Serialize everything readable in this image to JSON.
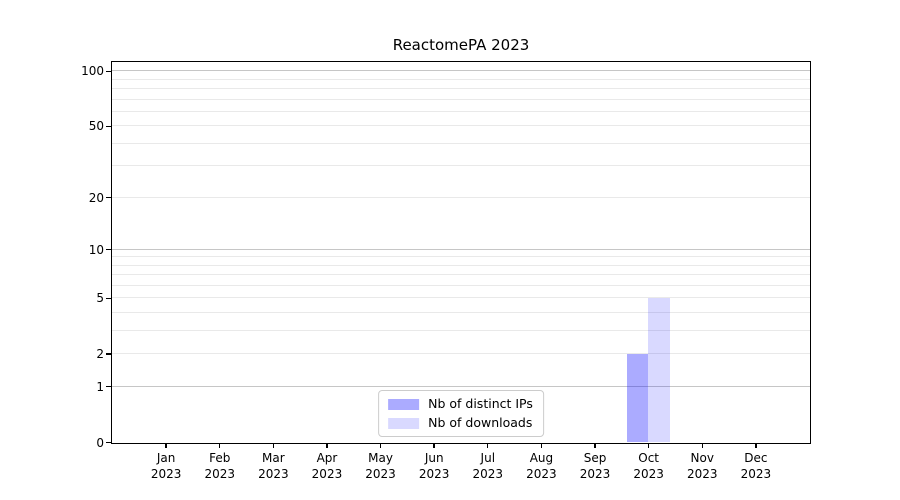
{
  "chart_data": {
    "type": "bar",
    "title": "ReactomePA 2023",
    "categories": [
      "Jan",
      "Feb",
      "Mar",
      "Apr",
      "May",
      "Jun",
      "Jul",
      "Aug",
      "Sep",
      "Oct",
      "Nov",
      "Dec"
    ],
    "year_label": "2023",
    "series": [
      {
        "name": "Nb of distinct IPs",
        "color": "rgba(0,0,255,0.33)",
        "color_hex_on_white": "#aaaaf7",
        "values": [
          0,
          0,
          0,
          0,
          0,
          0,
          0,
          0,
          0,
          2,
          0,
          0
        ]
      },
      {
        "name": "Nb of downloads",
        "color": "rgba(0,0,255,0.15)",
        "color_hex_on_white": "#dadaf9",
        "values": [
          0,
          0,
          0,
          0,
          0,
          0,
          0,
          0,
          0,
          5,
          0,
          0
        ]
      }
    ],
    "y_ticks": [
      0,
      1,
      2,
      5,
      10,
      20,
      50,
      100
    ],
    "y_scale": "log1p",
    "ylim": [
      0,
      112
    ],
    "grid": "horizontal major+minor (log), no vertical grid",
    "grid_major_values": [
      1,
      10,
      100
    ],
    "grid_minor_values": [
      2,
      3,
      4,
      5,
      6,
      7,
      8,
      9,
      20,
      30,
      40,
      50,
      60,
      70,
      80,
      90
    ],
    "grid_major_color": "#c6c6c6",
    "grid_minor_color": "#e9e9e9",
    "legend_position": "lower center inside plot",
    "xlabel": "",
    "ylabel": ""
  }
}
